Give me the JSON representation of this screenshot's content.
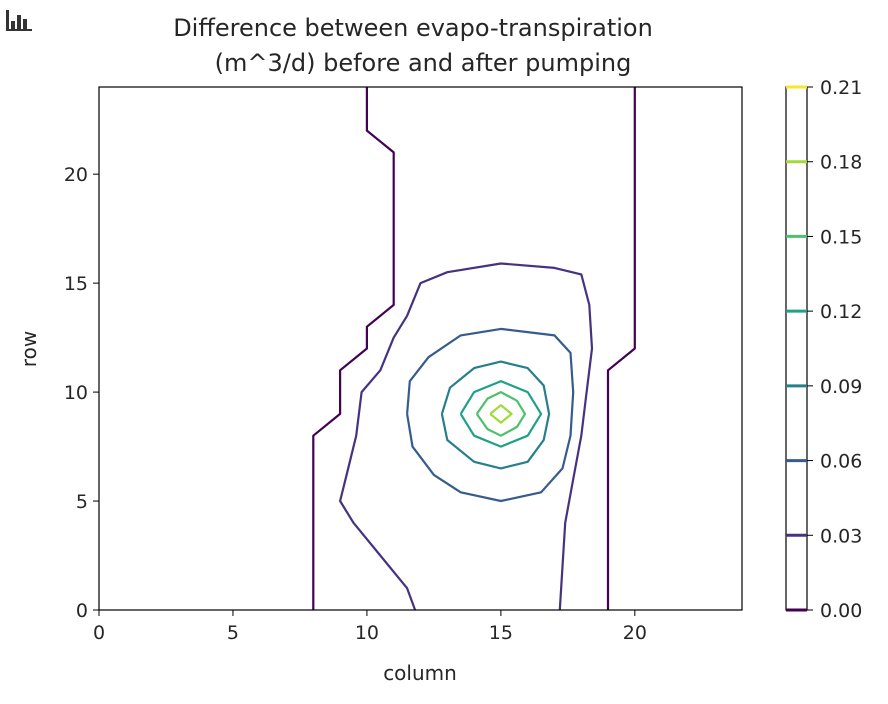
{
  "chart_data": {
    "type": "contour",
    "title_line1": "Difference between evapo-transpiration",
    "title_line2": "(m^3/d) before and after pumping",
    "xlabel": "column",
    "ylabel": "row",
    "xlim": [
      0,
      24
    ],
    "ylim": [
      0,
      24
    ],
    "xticks": [
      0,
      5,
      10,
      15,
      20
    ],
    "yticks": [
      0,
      5,
      10,
      15,
      20
    ],
    "colorbar": {
      "ticks": [
        "0.00",
        "0.03",
        "0.06",
        "0.09",
        "0.12",
        "0.15",
        "0.18",
        "0.21"
      ],
      "colors": [
        "#440154",
        "#46337f",
        "#365c8d",
        "#277f8e",
        "#1fa187",
        "#4ac16d",
        "#a0da39",
        "#fde725"
      ]
    },
    "contours": [
      {
        "level": 0.0,
        "color": "#440154",
        "paths": [
          [
            [
              8,
              0
            ],
            [
              8,
              8
            ],
            [
              9,
              9
            ],
            [
              9,
              11
            ],
            [
              10,
              12
            ],
            [
              10,
              13
            ],
            [
              11,
              14
            ],
            [
              11,
              21
            ],
            [
              10,
              22
            ],
            [
              10,
              24
            ]
          ],
          [
            [
              19,
              0
            ],
            [
              19,
              11
            ],
            [
              20,
              12
            ],
            [
              20,
              24
            ]
          ]
        ]
      },
      {
        "level": 0.03,
        "color": "#46337f",
        "paths": [
          [
            [
              11.8,
              0
            ],
            [
              11.5,
              1
            ],
            [
              10.5,
              2.5
            ],
            [
              9.5,
              4
            ],
            [
              9,
              5
            ],
            [
              9.2,
              6
            ],
            [
              9.6,
              8
            ],
            [
              9.8,
              10
            ],
            [
              10.5,
              11
            ],
            [
              11,
              12.5
            ],
            [
              11.5,
              13.5
            ],
            [
              12,
              15
            ],
            [
              13,
              15.5
            ],
            [
              15,
              15.9
            ],
            [
              17,
              15.7
            ],
            [
              18,
              15.4
            ],
            [
              18.3,
              14
            ],
            [
              18.4,
              12
            ],
            [
              18.2,
              10
            ],
            [
              18,
              8
            ],
            [
              17.7,
              6
            ],
            [
              17.4,
              4
            ],
            [
              17.3,
              2
            ],
            [
              17.2,
              0
            ]
          ]
        ]
      },
      {
        "level": 0.06,
        "color": "#365c8d",
        "paths": [
          [
            [
              11.5,
              9
            ],
            [
              11.7,
              7.5
            ],
            [
              12.5,
              6.2
            ],
            [
              13.5,
              5.4
            ],
            [
              15,
              5
            ],
            [
              16.5,
              5.4
            ],
            [
              17.3,
              6.5
            ],
            [
              17.6,
              8
            ],
            [
              17.7,
              10
            ],
            [
              17.6,
              11.8
            ],
            [
              17,
              12.6
            ],
            [
              15,
              12.9
            ],
            [
              13.5,
              12.6
            ],
            [
              12.3,
              11.6
            ],
            [
              11.6,
              10.5
            ],
            [
              11.5,
              9
            ]
          ]
        ]
      },
      {
        "level": 0.09,
        "color": "#277f8e",
        "paths": [
          [
            [
              12.8,
              9
            ],
            [
              13,
              7.8
            ],
            [
              14,
              6.8
            ],
            [
              15,
              6.5
            ],
            [
              16,
              6.8
            ],
            [
              16.6,
              7.8
            ],
            [
              16.8,
              9
            ],
            [
              16.6,
              10.3
            ],
            [
              16,
              11.1
            ],
            [
              15,
              11.4
            ],
            [
              14,
              11.1
            ],
            [
              13.1,
              10.2
            ],
            [
              12.8,
              9
            ]
          ]
        ]
      },
      {
        "level": 0.12,
        "color": "#1fa187",
        "paths": [
          [
            [
              13.5,
              9
            ],
            [
              14,
              8
            ],
            [
              15,
              7.5
            ],
            [
              16,
              8
            ],
            [
              16.5,
              9
            ],
            [
              16,
              10
            ],
            [
              15,
              10.5
            ],
            [
              14,
              10
            ],
            [
              13.5,
              9
            ]
          ]
        ]
      },
      {
        "level": 0.15,
        "color": "#4ac16d",
        "paths": [
          [
            [
              14.1,
              9
            ],
            [
              14.5,
              8.3
            ],
            [
              15,
              8
            ],
            [
              15.6,
              8.4
            ],
            [
              15.9,
              9
            ],
            [
              15.6,
              9.6
            ],
            [
              15,
              10
            ],
            [
              14.5,
              9.7
            ],
            [
              14.1,
              9
            ]
          ]
        ]
      },
      {
        "level": 0.18,
        "color": "#a0da39",
        "paths": [
          [
            [
              14.6,
              9
            ],
            [
              15,
              8.6
            ],
            [
              15.4,
              9
            ],
            [
              15,
              9.4
            ],
            [
              14.6,
              9
            ]
          ]
        ]
      }
    ]
  }
}
